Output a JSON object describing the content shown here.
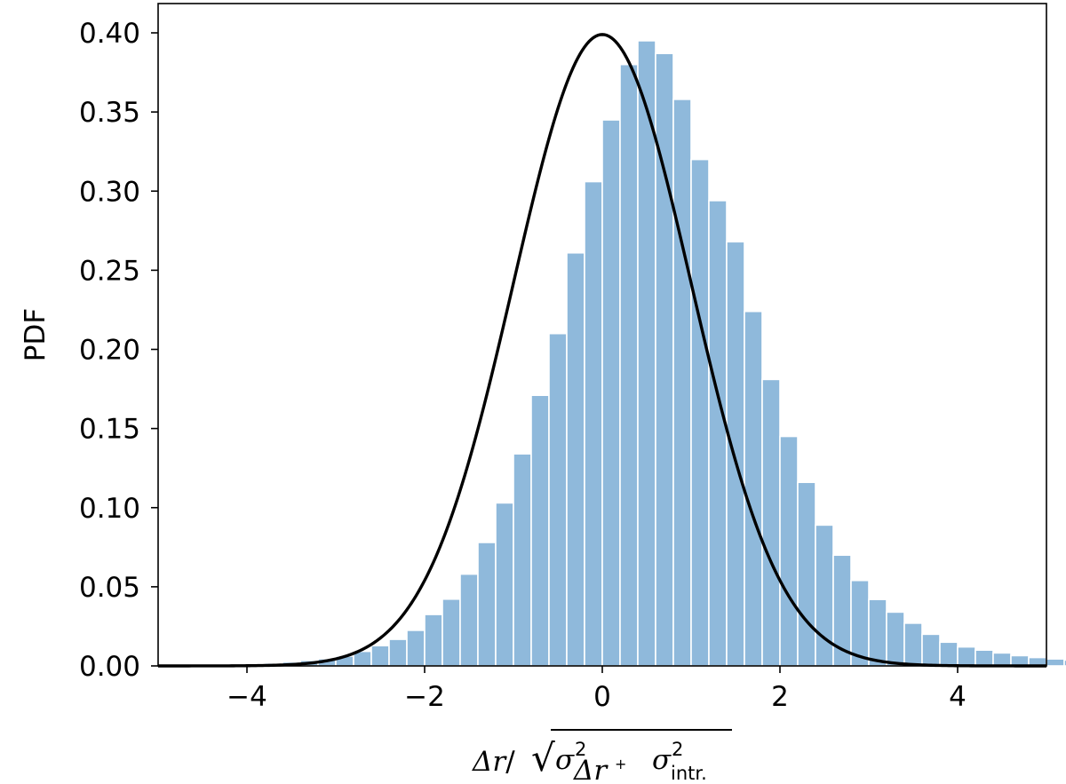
{
  "chart_data": {
    "type": "bar",
    "subtype": "histogram-with-curve",
    "title": "",
    "xlabel": {
      "numerator": "Δr",
      "sep": "/",
      "sqrt": "√",
      "sigma": "σ",
      "sup": "2",
      "sub1": "Δr",
      "plus": "+",
      "sub2": "intr."
    },
    "ylabel": "PDF",
    "xlim": [
      -5,
      5
    ],
    "ylim": [
      0,
      0.4
    ],
    "xticks": [
      -4,
      -2,
      0,
      2,
      4
    ],
    "xtick_labels": [
      "−4",
      "−2",
      "0",
      "2",
      "4"
    ],
    "yticks": [
      0,
      0.05,
      0.1,
      0.15,
      0.2,
      0.25,
      0.3,
      0.35,
      0.4
    ],
    "ytick_labels": [
      "0.00",
      "0.05",
      "0.10",
      "0.15",
      "0.20",
      "0.25",
      "0.30",
      "0.35",
      "0.40"
    ],
    "bin_width": 0.2,
    "bin_edges_start": -5.0,
    "bins_values": [
      0.0002,
      0.0002,
      0.0003,
      0.0005,
      0.0008,
      0.0012,
      0.0018,
      0.0025,
      0.0035,
      0.0045,
      0.0062,
      0.0092,
      0.0128,
      0.0168,
      0.0225,
      0.0325,
      0.0422,
      0.058,
      0.078,
      0.103,
      0.134,
      0.171,
      0.21,
      0.261,
      0.306,
      0.345,
      0.38,
      0.395,
      0.387,
      0.358,
      0.32,
      0.294,
      0.268,
      0.224,
      0.181,
      0.145,
      0.116,
      0.089,
      0.07,
      0.054,
      0.042,
      0.034,
      0.027,
      0.02,
      0.015,
      0.012,
      0.01,
      0.0082,
      0.0065,
      0.0053,
      0.0044,
      0.0037,
      0.0032,
      0.0025,
      0.0018
    ],
    "curve": {
      "type": "normal-pdf",
      "mean": 0,
      "std": 1,
      "x_range": [
        -5,
        5
      ]
    },
    "grid": false,
    "colors": {
      "bar": "#8fb9db",
      "bar_edge": "#ffffff",
      "curve": "#000000",
      "axes": "#000000"
    }
  }
}
